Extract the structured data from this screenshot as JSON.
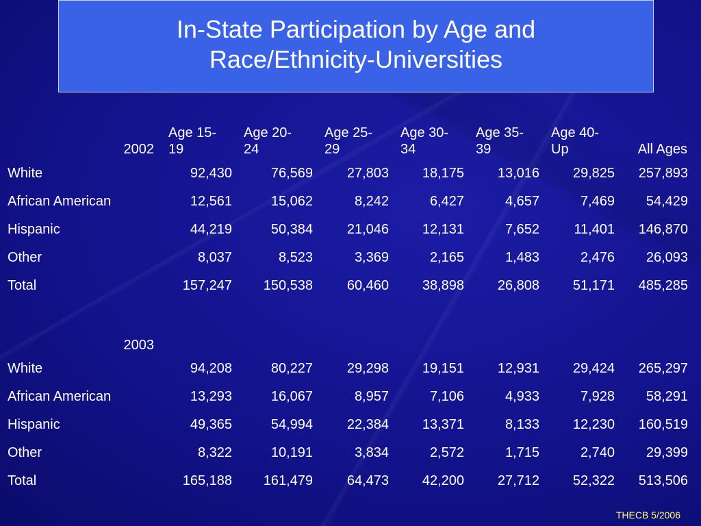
{
  "title_line1": "In-State Participation by Age and",
  "title_line2": "Race/Ethnicity-Universities",
  "columns": [
    "Age 15-\n19",
    "Age 20-\n24",
    "Age 25-\n29",
    "Age 30-\n34",
    "Age 35-\n39",
    "Age 40-\nUp",
    "All Ages"
  ],
  "column_lines": [
    [
      "Age 15-",
      "19"
    ],
    [
      "Age 20-",
      "24"
    ],
    [
      "Age 25-",
      "29"
    ],
    [
      "Age 30-",
      "34"
    ],
    [
      "Age 35-",
      "39"
    ],
    [
      "Age 40-",
      "Up"
    ],
    [
      "",
      "All Ages"
    ]
  ],
  "sections": [
    {
      "year": "2002",
      "rows": [
        {
          "label": "White",
          "values": [
            "92,430",
            "76,569",
            "27,803",
            "18,175",
            "13,016",
            "29,825",
            "257,893"
          ]
        },
        {
          "label": "African American",
          "values": [
            "12,561",
            "15,062",
            "8,242",
            "6,427",
            "4,657",
            "7,469",
            "54,429"
          ]
        },
        {
          "label": "Hispanic",
          "values": [
            "44,219",
            "50,384",
            "21,046",
            "12,131",
            "7,652",
            "11,401",
            "146,870"
          ]
        },
        {
          "label": "Other",
          "values": [
            "8,037",
            "8,523",
            "3,369",
            "2,165",
            "1,483",
            "2,476",
            "26,093"
          ]
        },
        {
          "label": "Total",
          "values": [
            "157,247",
            "150,538",
            "60,460",
            "38,898",
            "26,808",
            "51,171",
            "485,285"
          ]
        }
      ]
    },
    {
      "year": "2003",
      "rows": [
        {
          "label": "White",
          "values": [
            "94,208",
            "80,227",
            "29,298",
            "19,151",
            "12,931",
            "29,424",
            "265,297"
          ]
        },
        {
          "label": "African American",
          "values": [
            "13,293",
            "16,067",
            "8,957",
            "7,106",
            "4,933",
            "7,928",
            "58,291"
          ]
        },
        {
          "label": "Hispanic",
          "values": [
            "49,365",
            "54,994",
            "22,384",
            "13,371",
            "8,133",
            "12,230",
            "160,519"
          ]
        },
        {
          "label": "Other",
          "values": [
            "8,322",
            "10,191",
            "3,834",
            "2,572",
            "1,715",
            "2,740",
            "29,399"
          ]
        },
        {
          "label": "Total",
          "values": [
            "165,188",
            "161,479",
            "64,473",
            "42,200",
            "27,712",
            "52,322",
            "513,506"
          ]
        }
      ]
    }
  ],
  "footer": "THECB 5/2006",
  "colors": {
    "background": "#12128a",
    "title_box": "#3a62e6",
    "text": "#ffffff",
    "footer": "#ffff66"
  }
}
